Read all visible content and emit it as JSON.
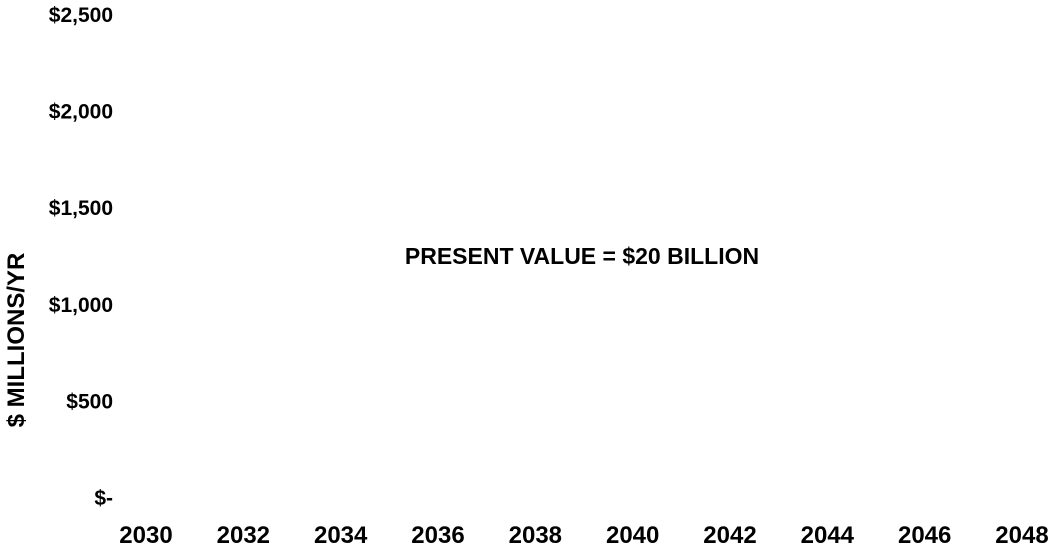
{
  "chart_data": {
    "type": "line",
    "title": "",
    "xlabel": "",
    "ylabel": "$ MILLIONS/YR",
    "x_ticks": [
      "2030",
      "2032",
      "2034",
      "2036",
      "2038",
      "2040",
      "2042",
      "2044",
      "2046",
      "2048"
    ],
    "y_ticks": [
      "$2,500",
      "$2,000",
      "$1,500",
      "$1,000",
      "$500",
      "$-"
    ],
    "ylim": [
      0,
      2500
    ],
    "xlim": [
      2030,
      2048
    ],
    "grid": false,
    "annotations": [
      {
        "text": "PRESENT VALUE = $20 BILLION"
      }
    ],
    "series": []
  },
  "colors": {
    "text": "#000000",
    "background": "#ffffff"
  }
}
